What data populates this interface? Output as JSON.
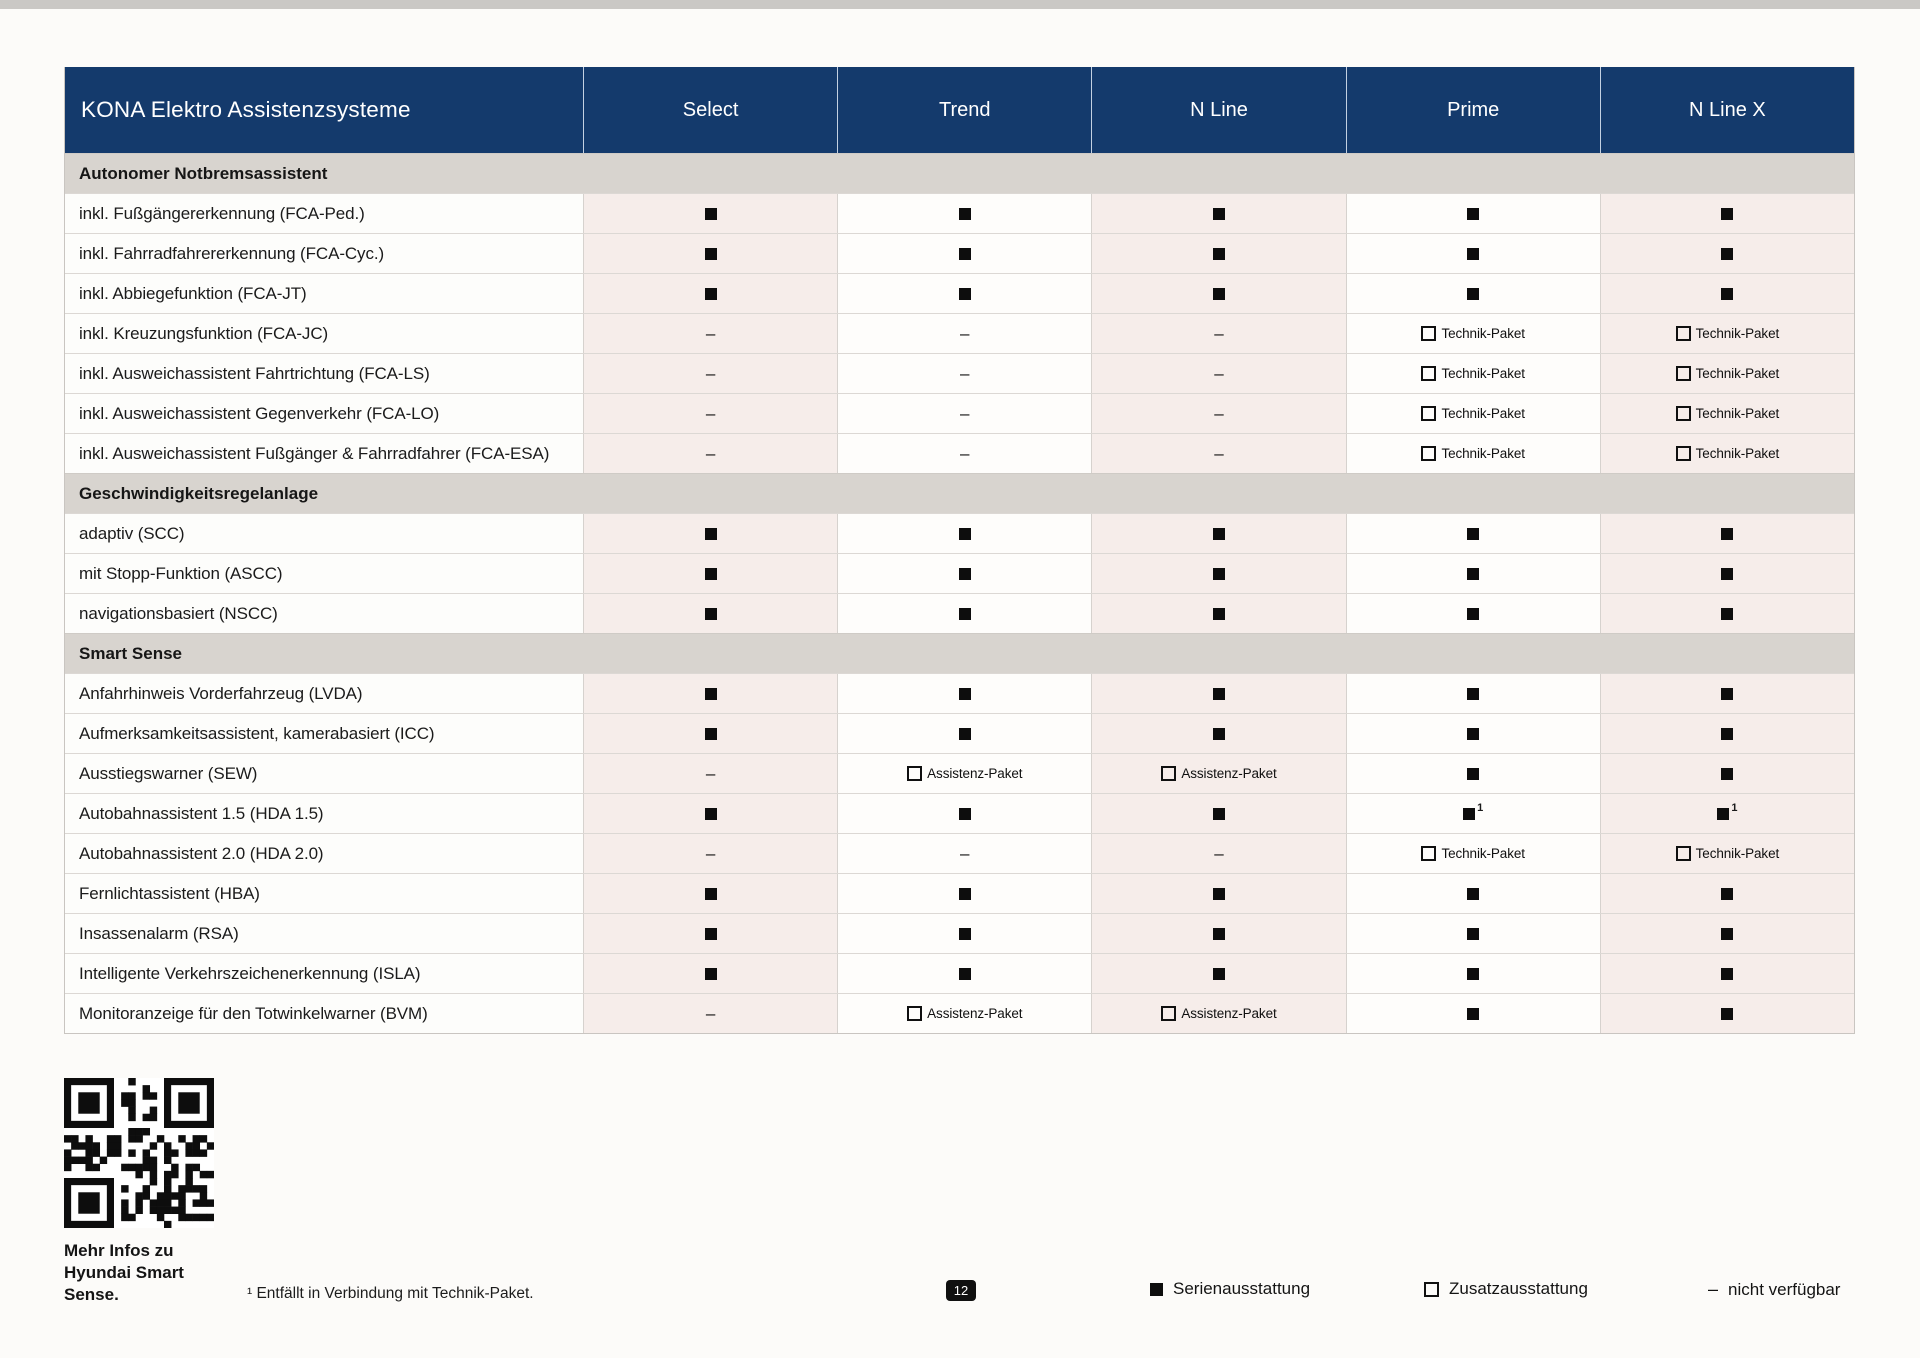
{
  "table": {
    "title": "KONA Elektro Assistenzsysteme",
    "columns": [
      "Select",
      "Trend",
      "N Line",
      "Prime",
      "N Line X"
    ],
    "sections": [
      {
        "label": "Autonomer Notbremsassistent",
        "rows": [
          {
            "label": "inkl. Fußgängererkennung (FCA-Ped.)",
            "cells": [
              "std",
              "std",
              "std",
              "std",
              "std"
            ]
          },
          {
            "label": "inkl. Fahrradfahrererkennung (FCA-Cyc.)",
            "cells": [
              "std",
              "std",
              "std",
              "std",
              "std"
            ]
          },
          {
            "label": "inkl. Abbiegefunktion (FCA-JT)",
            "cells": [
              "std",
              "std",
              "std",
              "std",
              "std"
            ]
          },
          {
            "label": "inkl. Kreuzungsfunktion (FCA-JC)",
            "cells": [
              "na",
              "na",
              "na",
              "pkg:Technik-Paket",
              "pkg:Technik-Paket"
            ]
          },
          {
            "label": "inkl. Ausweichassistent Fahrtrichtung (FCA-LS)",
            "cells": [
              "na",
              "na",
              "na",
              "pkg:Technik-Paket",
              "pkg:Technik-Paket"
            ]
          },
          {
            "label": "inkl. Ausweichassistent Gegenverkehr (FCA-LO)",
            "cells": [
              "na",
              "na",
              "na",
              "pkg:Technik-Paket",
              "pkg:Technik-Paket"
            ]
          },
          {
            "label": "inkl. Ausweichassistent Fußgänger & Fahrradfahrer (FCA-ESA)",
            "cells": [
              "na",
              "na",
              "na",
              "pkg:Technik-Paket",
              "pkg:Technik-Paket"
            ]
          }
        ]
      },
      {
        "label": "Geschwindigkeitsregelanlage",
        "rows": [
          {
            "label": "adaptiv (SCC)",
            "cells": [
              "std",
              "std",
              "std",
              "std",
              "std"
            ]
          },
          {
            "label": "mit Stopp-Funktion (ASCC)",
            "cells": [
              "std",
              "std",
              "std",
              "std",
              "std"
            ]
          },
          {
            "label": "navigationsbasiert (NSCC)",
            "cells": [
              "std",
              "std",
              "std",
              "std",
              "std"
            ]
          }
        ]
      },
      {
        "label": "Smart Sense",
        "rows": [
          {
            "label": "Anfahrhinweis Vorderfahrzeug (LVDA)",
            "cells": [
              "std",
              "std",
              "std",
              "std",
              "std"
            ]
          },
          {
            "label": "Aufmerksamkeitsassistent, kamerabasiert (ICC)",
            "cells": [
              "std",
              "std",
              "std",
              "std",
              "std"
            ]
          },
          {
            "label": "Ausstiegswarner (SEW)",
            "cells": [
              "na",
              "pkg:Assistenz-Paket",
              "pkg:Assistenz-Paket",
              "std",
              "std"
            ]
          },
          {
            "label": "Autobahnassistent 1.5 (HDA 1.5)",
            "cells": [
              "std",
              "std",
              "std",
              "std1",
              "std1"
            ]
          },
          {
            "label": "Autobahnassistent 2.0 (HDA 2.0)",
            "cells": [
              "na",
              "na",
              "na",
              "pkg:Technik-Paket",
              "pkg:Technik-Paket"
            ]
          },
          {
            "label": "Fernlichtassistent (HBA)",
            "cells": [
              "std",
              "std",
              "std",
              "std",
              "std"
            ]
          },
          {
            "label": "Insassenalarm (RSA)",
            "cells": [
              "std",
              "std",
              "std",
              "std",
              "std"
            ]
          },
          {
            "label": "Intelligente Verkehrszeichenerkennung (ISLA)",
            "cells": [
              "std",
              "std",
              "std",
              "std",
              "std"
            ]
          },
          {
            "label": "Monitoranzeige für den Totwinkelwarner (BVM)",
            "cells": [
              "na",
              "pkg:Assistenz-Paket",
              "pkg:Assistenz-Paket",
              "std",
              "std"
            ]
          }
        ]
      }
    ]
  },
  "symbols": {
    "standard": "■",
    "package_checkbox": "□",
    "not_available": "–",
    "footnote_sup": "1"
  },
  "footer": {
    "qr_caption_lines": [
      "Mehr Infos zu",
      "Hyundai Smart",
      "Sense."
    ],
    "footnote": "¹ Entfällt in Verbindung mit Technik-Paket.",
    "page_number": "12",
    "legend": [
      {
        "symbol": "filled-square",
        "label": "Serienausstattung"
      },
      {
        "symbol": "outline-square",
        "label": "Zusatzausstattung"
      },
      {
        "symbol": "dash",
        "label": "nicht verfügbar"
      }
    ]
  },
  "colors": {
    "header_navy": "#143a6c",
    "section_gray": "#d8d4cf",
    "column_tint": "#f6edea",
    "cell_white": "#fefdfb",
    "text": "#1a1a1a"
  }
}
